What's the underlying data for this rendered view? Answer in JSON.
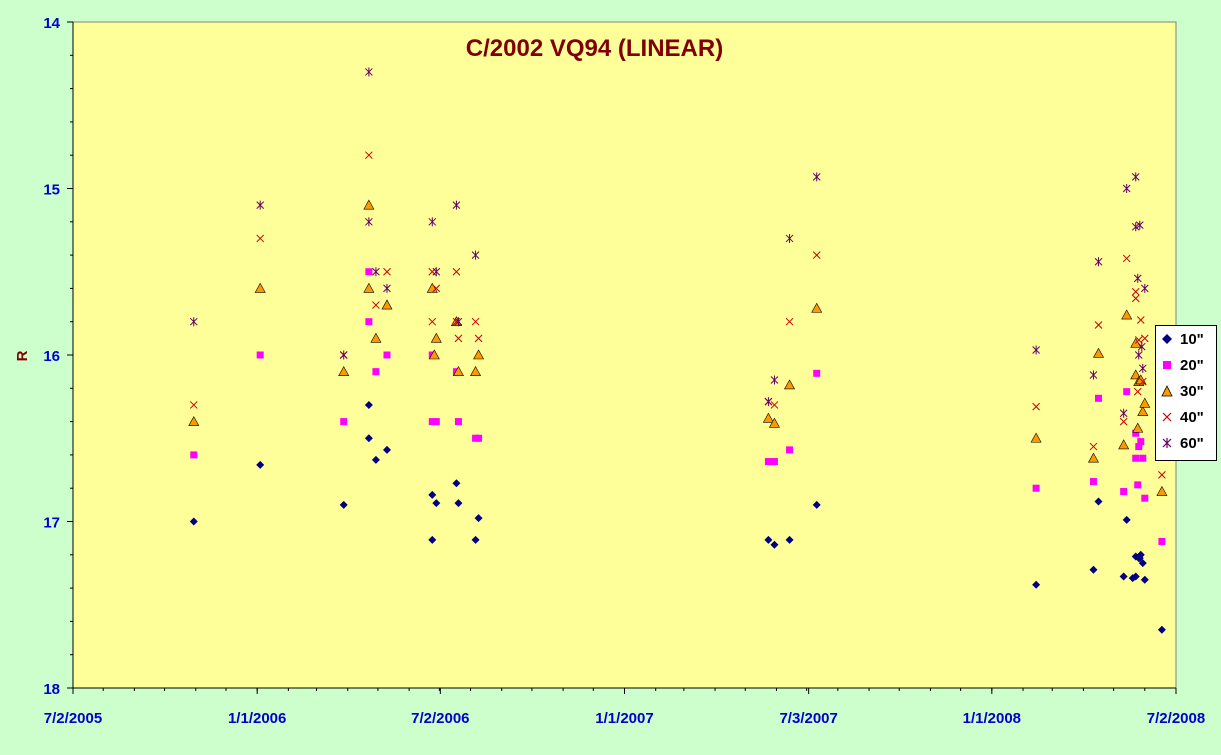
{
  "chart_data": {
    "type": "scatter",
    "title": "C/2002 VQ94 (LINEAR)",
    "xlabel": "",
    "ylabel": "R",
    "y_axis_reversed": true,
    "ylim": [
      14,
      18
    ],
    "yticks": [
      "14",
      "15",
      "16",
      "17",
      "18"
    ],
    "xlim": [
      "2005-07-02",
      "2008-07-02"
    ],
    "xticks": [
      "7/2/2005",
      "1/1/2006",
      "7/2/2006",
      "1/1/2007",
      "7/3/2007",
      "1/1/2008",
      "7/2/2008"
    ],
    "legend_position": "right",
    "grid": false,
    "colors": {
      "plot_bg": "#ffff99",
      "outer_bg": "#ccffcc",
      "title": "#800000",
      "axis_text": "#0000cc",
      "ylabel": "#800000"
    },
    "series": [
      {
        "name": "10\"",
        "marker": "diamond",
        "color": "#000080",
        "points": [
          [
            "2005-10-30",
            17.0
          ],
          [
            "2006-01-04",
            16.66
          ],
          [
            "2006-03-28",
            16.9
          ],
          [
            "2006-04-22",
            16.3
          ],
          [
            "2006-04-22",
            16.5
          ],
          [
            "2006-04-29",
            16.63
          ],
          [
            "2006-05-10",
            16.57
          ],
          [
            "2006-06-24",
            16.84
          ],
          [
            "2006-06-28",
            16.89
          ],
          [
            "2006-06-24",
            17.11
          ],
          [
            "2006-07-18",
            16.77
          ],
          [
            "2006-07-20",
            16.89
          ],
          [
            "2006-08-06",
            17.11
          ],
          [
            "2006-08-09",
            16.98
          ],
          [
            "2007-05-24",
            17.11
          ],
          [
            "2007-05-30",
            17.14
          ],
          [
            "2007-06-14",
            17.11
          ],
          [
            "2007-07-11",
            16.9
          ],
          [
            "2008-02-14",
            17.38
          ],
          [
            "2008-04-11",
            17.29
          ],
          [
            "2008-05-11",
            17.33
          ],
          [
            "2008-05-14",
            16.99
          ],
          [
            "2008-05-23",
            17.33
          ],
          [
            "2008-05-23",
            17.21
          ],
          [
            "2008-05-26",
            17.22
          ],
          [
            "2008-05-27",
            17.22
          ],
          [
            "2008-05-28",
            17.2
          ],
          [
            "2008-05-30",
            17.25
          ],
          [
            "2008-06-01",
            17.35
          ],
          [
            "2008-06-18",
            17.65
          ],
          [
            "2008-05-20",
            17.34
          ],
          [
            "2008-04-16",
            16.88
          ]
        ]
      },
      {
        "name": "20\"",
        "marker": "square",
        "color": "#ff00ff",
        "points": [
          [
            "2005-10-30",
            16.6
          ],
          [
            "2006-01-04",
            16.0
          ],
          [
            "2006-03-28",
            16.4
          ],
          [
            "2006-04-22",
            15.5
          ],
          [
            "2006-04-22",
            15.8
          ],
          [
            "2006-04-29",
            16.1
          ],
          [
            "2006-05-10",
            16.0
          ],
          [
            "2006-06-24",
            16.0
          ],
          [
            "2006-06-24",
            16.4
          ],
          [
            "2006-06-28",
            16.4
          ],
          [
            "2006-07-18",
            16.1
          ],
          [
            "2006-07-20",
            16.4
          ],
          [
            "2006-08-06",
            16.5
          ],
          [
            "2006-08-09",
            16.5
          ],
          [
            "2007-05-24",
            16.64
          ],
          [
            "2007-05-30",
            16.64
          ],
          [
            "2007-06-14",
            16.57
          ],
          [
            "2007-07-11",
            16.11
          ],
          [
            "2008-02-14",
            16.8
          ],
          [
            "2008-04-11",
            16.76
          ],
          [
            "2008-04-16",
            16.26
          ],
          [
            "2008-05-11",
            16.82
          ],
          [
            "2008-05-14",
            16.22
          ],
          [
            "2008-05-23",
            16.47
          ],
          [
            "2008-05-23",
            16.62
          ],
          [
            "2008-05-26",
            16.55
          ],
          [
            "2008-05-28",
            16.52
          ],
          [
            "2008-05-30",
            16.62
          ],
          [
            "2008-06-01",
            16.86
          ],
          [
            "2008-06-18",
            17.12
          ],
          [
            "2008-05-25",
            16.78
          ]
        ]
      },
      {
        "name": "30\"",
        "marker": "triangle",
        "color": "#ff9900",
        "points": [
          [
            "2005-10-30",
            16.4
          ],
          [
            "2006-01-04",
            15.6
          ],
          [
            "2006-03-28",
            16.1
          ],
          [
            "2006-04-22",
            15.1
          ],
          [
            "2006-04-22",
            15.6
          ],
          [
            "2006-04-29",
            15.9
          ],
          [
            "2006-05-10",
            15.7
          ],
          [
            "2006-06-24",
            15.6
          ],
          [
            "2006-06-26",
            16.0
          ],
          [
            "2006-06-28",
            15.9
          ],
          [
            "2006-07-18",
            15.8
          ],
          [
            "2006-07-20",
            16.1
          ],
          [
            "2006-08-06",
            16.1
          ],
          [
            "2006-08-09",
            16.0
          ],
          [
            "2007-05-24",
            16.38
          ],
          [
            "2007-05-30",
            16.41
          ],
          [
            "2007-06-14",
            16.18
          ],
          [
            "2007-07-11",
            15.72
          ],
          [
            "2008-02-14",
            16.5
          ],
          [
            "2008-04-11",
            16.62
          ],
          [
            "2008-04-16",
            15.99
          ],
          [
            "2008-05-11",
            16.54
          ],
          [
            "2008-05-14",
            15.76
          ],
          [
            "2008-05-23",
            16.12
          ],
          [
            "2008-05-23",
            15.93
          ],
          [
            "2008-05-25",
            16.44
          ],
          [
            "2008-05-26",
            16.16
          ],
          [
            "2008-05-28",
            16.15
          ],
          [
            "2008-05-30",
            16.34
          ],
          [
            "2008-06-01",
            16.29
          ],
          [
            "2008-06-18",
            16.82
          ]
        ]
      },
      {
        "name": "40\"",
        "marker": "x",
        "color": "#cc0000",
        "points": [
          [
            "2005-10-30",
            16.3
          ],
          [
            "2006-01-04",
            15.3
          ],
          [
            "2006-03-28",
            16.0
          ],
          [
            "2006-04-22",
            14.8
          ],
          [
            "2006-04-29",
            15.7
          ],
          [
            "2006-05-10",
            15.5
          ],
          [
            "2006-06-24",
            15.5
          ],
          [
            "2006-06-24",
            15.8
          ],
          [
            "2006-06-28",
            15.6
          ],
          [
            "2006-07-18",
            15.5
          ],
          [
            "2006-07-18",
            15.8
          ],
          [
            "2006-07-20",
            15.9
          ],
          [
            "2006-08-06",
            15.8
          ],
          [
            "2006-08-09",
            15.9
          ],
          [
            "2007-05-24",
            16.28
          ],
          [
            "2007-05-30",
            16.3
          ],
          [
            "2007-06-14",
            15.8
          ],
          [
            "2007-07-11",
            15.4
          ],
          [
            "2008-02-14",
            16.31
          ],
          [
            "2008-04-11",
            16.55
          ],
          [
            "2008-04-16",
            15.82
          ],
          [
            "2008-05-11",
            16.4
          ],
          [
            "2008-05-14",
            15.42
          ],
          [
            "2008-05-23",
            15.66
          ],
          [
            "2008-05-23",
            15.62
          ],
          [
            "2008-05-25",
            16.22
          ],
          [
            "2008-05-26",
            15.91
          ],
          [
            "2008-05-28",
            15.79
          ],
          [
            "2008-05-30",
            16.16
          ],
          [
            "2008-06-01",
            15.9
          ],
          [
            "2008-06-18",
            16.72
          ]
        ]
      },
      {
        "name": "60\"",
        "marker": "star",
        "color": "#660066",
        "points": [
          [
            "2005-10-30",
            15.8
          ],
          [
            "2006-01-04",
            15.1
          ],
          [
            "2006-03-28",
            16.0
          ],
          [
            "2006-04-22",
            14.3
          ],
          [
            "2006-04-22",
            15.2
          ],
          [
            "2006-04-29",
            15.5
          ],
          [
            "2006-05-10",
            15.6
          ],
          [
            "2006-06-24",
            15.2
          ],
          [
            "2006-06-28",
            15.5
          ],
          [
            "2006-07-18",
            15.1
          ],
          [
            "2006-07-20",
            15.8
          ],
          [
            "2006-08-06",
            15.4
          ],
          [
            "2007-05-24",
            16.28
          ],
          [
            "2007-05-30",
            16.15
          ],
          [
            "2007-06-14",
            15.3
          ],
          [
            "2007-07-11",
            14.93
          ],
          [
            "2008-02-14",
            15.97
          ],
          [
            "2008-04-11",
            16.12
          ],
          [
            "2008-04-16",
            15.44
          ],
          [
            "2008-05-11",
            16.35
          ],
          [
            "2008-05-14",
            15.0
          ],
          [
            "2008-05-23",
            14.93
          ],
          [
            "2008-05-23",
            15.23
          ],
          [
            "2008-05-25",
            15.54
          ],
          [
            "2008-05-26",
            16.0
          ],
          [
            "2008-05-27",
            15.22
          ],
          [
            "2008-05-29",
            15.95
          ],
          [
            "2008-05-30",
            16.08
          ],
          [
            "2008-06-01",
            15.6
          ],
          [
            "2008-06-18",
            16.56
          ]
        ]
      }
    ]
  }
}
